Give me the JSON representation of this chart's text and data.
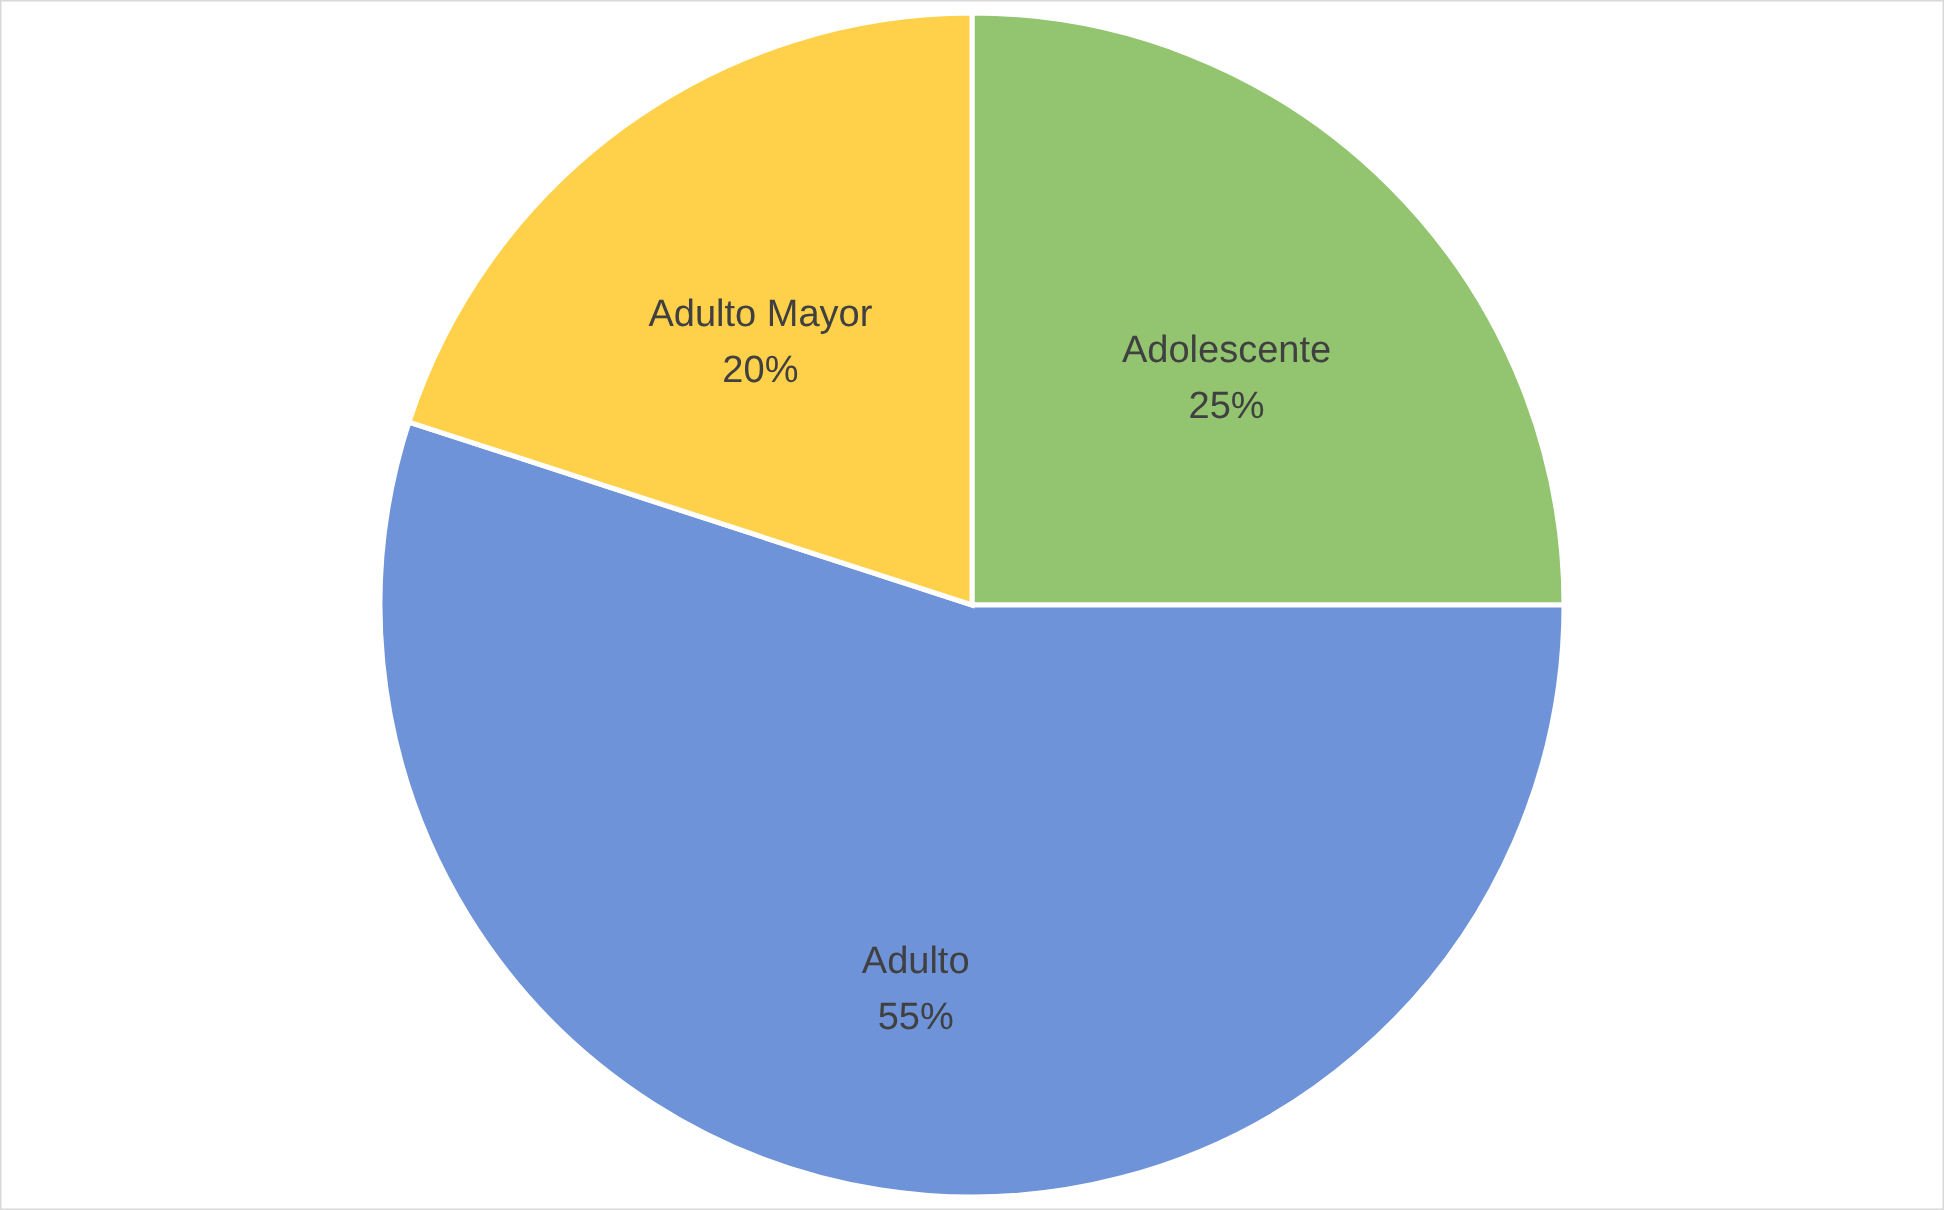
{
  "chart_data": {
    "type": "pie",
    "categories": [
      "Adolescente",
      "Adulto",
      "Adulto Mayor"
    ],
    "values": [
      25,
      55,
      20
    ],
    "value_labels": [
      "25%",
      "55%",
      "20%"
    ],
    "colors": [
      "#93c571",
      "#6f93d8",
      "#ffd04a"
    ]
  }
}
